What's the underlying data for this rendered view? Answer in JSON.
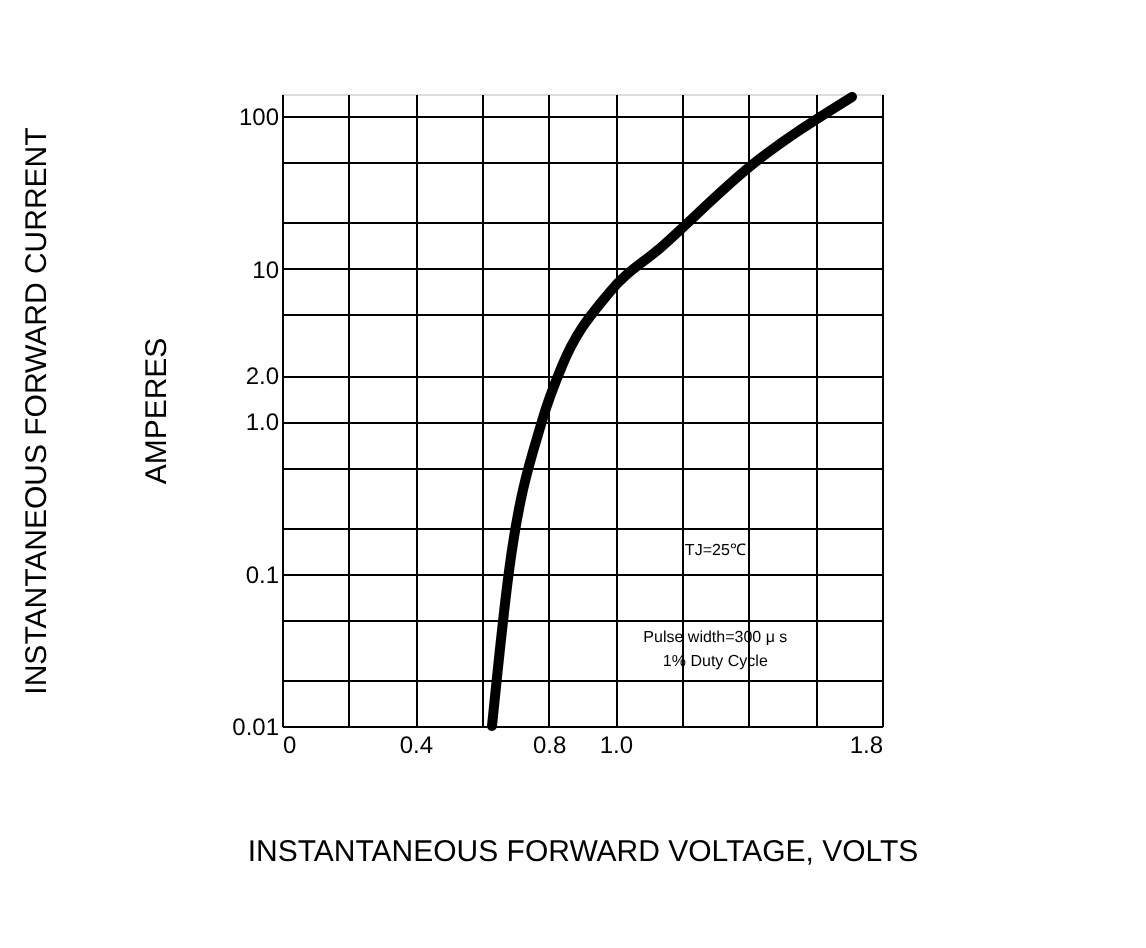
{
  "chart_data": {
    "type": "line",
    "xlabel": "INSTANTANEOUS FORWARD VOLTAGE,  VOLTS",
    "ylabel": "INSTANTANEOUS FORWARD CURRENT\nAMPERES",
    "annotations": [
      "TJ=25℃",
      "Pulse width=300 μ s\n1% Duty Cycle"
    ],
    "log": "y",
    "grid": true,
    "line_style": "solid",
    "series": [
      {
        "color": "#000000",
        "x": [
          0.63,
          0.68,
          0.78,
          0.84,
          0.98,
          1.14,
          1.41,
          1.71
        ],
        "values": [
          0.01,
          0.1,
          1.0,
          2.3,
          6.9,
          14,
          48,
          134
        ]
      }
    ],
    "xlim": [
      0,
      1.8
    ],
    "xticks": [
      0,
      {
        "value": 0.2,
        "label": null
      },
      0.4,
      {
        "value": 0.6,
        "label": null
      },
      0.8,
      {
        "value": 1.0,
        "label": "1.0"
      },
      {
        "value": 1.2,
        "label": null
      },
      {
        "value": 1.4,
        "label": null
      },
      {
        "value": 1.6,
        "label": null
      },
      1.8
    ],
    "ylim": [
      0.01,
      140
    ],
    "yticks": [
      0.01,
      {
        "value": 0.02,
        "label": null
      },
      {
        "value": 0.05,
        "label": null
      },
      0.1,
      {
        "value": 0.2,
        "label": null
      },
      {
        "value": 0.5,
        "label": null
      },
      {
        "value": 1,
        "label": "1.0"
      },
      {
        "value": 2,
        "label": "2.0"
      },
      {
        "value": 5,
        "label": null
      },
      10,
      {
        "value": 20,
        "label": null
      },
      {
        "value": 50,
        "label": null
      },
      100
    ]
  }
}
